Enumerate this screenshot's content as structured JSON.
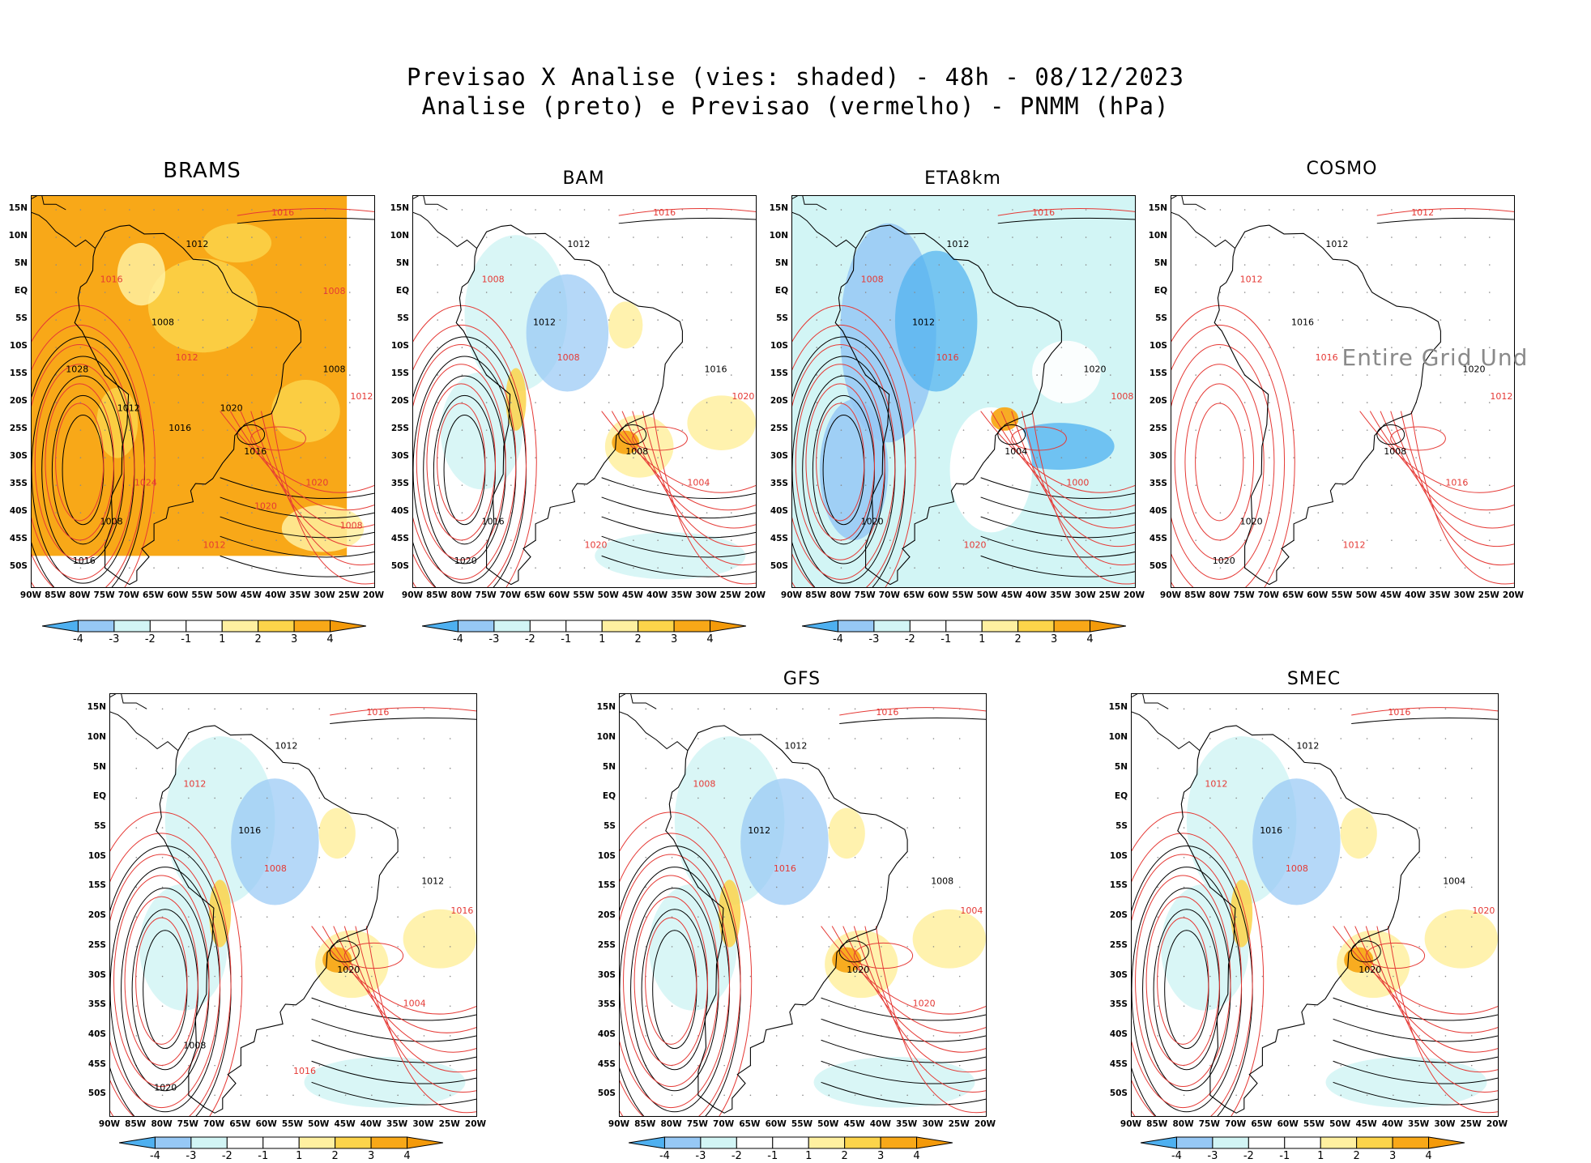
{
  "header": {
    "line1": "Previsao X Analise (vies: shaded) - 48h - 08/12/2023",
    "line2": "Analise (preto) e Previsao (vermelho) - PNMM (hPa)"
  },
  "axes": {
    "y_labels": [
      "15N",
      "10N",
      "5N",
      "EQ",
      "5S",
      "10S",
      "15S",
      "20S",
      "25S",
      "30S",
      "35S",
      "40S",
      "45S",
      "50S"
    ],
    "x_labels": [
      "90W",
      "85W",
      "80W",
      "75W",
      "70W",
      "65W",
      "60W",
      "55W",
      "50W",
      "45W",
      "40W",
      "35W",
      "30W",
      "25W",
      "20W"
    ]
  },
  "colorbar": {
    "labels": [
      "-4",
      "-3",
      "-2",
      "-1",
      "1",
      "2",
      "3",
      "4"
    ],
    "colors": [
      "#4eb0f0",
      "#96c8f5",
      "#d2f5f5",
      "#ffffff",
      "#ffffff",
      "#fff0a0",
      "#fcd44a",
      "#f8a818",
      "#f49a0a"
    ]
  },
  "panels": [
    {
      "name": "BRAMS",
      "bias_style": "warm",
      "contours": [
        "1016",
        "1012",
        "1016",
        "1008",
        "1012",
        "1008",
        "1012",
        "1016",
        "1020",
        "1008",
        "1012",
        "1016",
        "1024",
        "1020",
        "1008",
        "1012",
        "1020",
        "1028",
        "1008",
        "1016"
      ],
      "message": ""
    },
    {
      "name": "BAM",
      "bias_style": "mixed",
      "contours": [
        "1016",
        "1012",
        "1008",
        "1012",
        "1008",
        "1016",
        "1020",
        "1008",
        "1004",
        "1016",
        "1020",
        "1020"
      ],
      "message": ""
    },
    {
      "name": "ETA8km",
      "bias_style": "cold",
      "contours": [
        "1016",
        "1012",
        "1008",
        "1012",
        "1016",
        "1020",
        "1008",
        "1004",
        "1000",
        "1020",
        "1020"
      ],
      "message": ""
    },
    {
      "name": "COSMO",
      "bias_style": "none",
      "contours": [
        "1012",
        "1012",
        "1012",
        "1016",
        "1016",
        "1020",
        "1012",
        "1008",
        "1016",
        "1020",
        "1012",
        "1020"
      ],
      "message": "Entire Grid Und"
    },
    {
      "name": "",
      "bias_style": "mixed",
      "contours": [
        "1016",
        "1012",
        "1012",
        "1016",
        "1008",
        "1012",
        "1016",
        "1020",
        "1004",
        "1008",
        "1016",
        "1020"
      ],
      "message": ""
    },
    {
      "name": "GFS",
      "bias_style": "mixed",
      "contours": [
        "1016",
        "1012",
        "1008",
        "1012",
        "1016",
        "1008",
        "1004",
        "1020",
        "1020"
      ],
      "message": ""
    },
    {
      "name": "SMEC",
      "bias_style": "mixed",
      "contours": [
        "1016",
        "1012",
        "1012",
        "1016",
        "1008",
        "1004",
        "1020",
        "1020"
      ],
      "message": ""
    }
  ]
}
